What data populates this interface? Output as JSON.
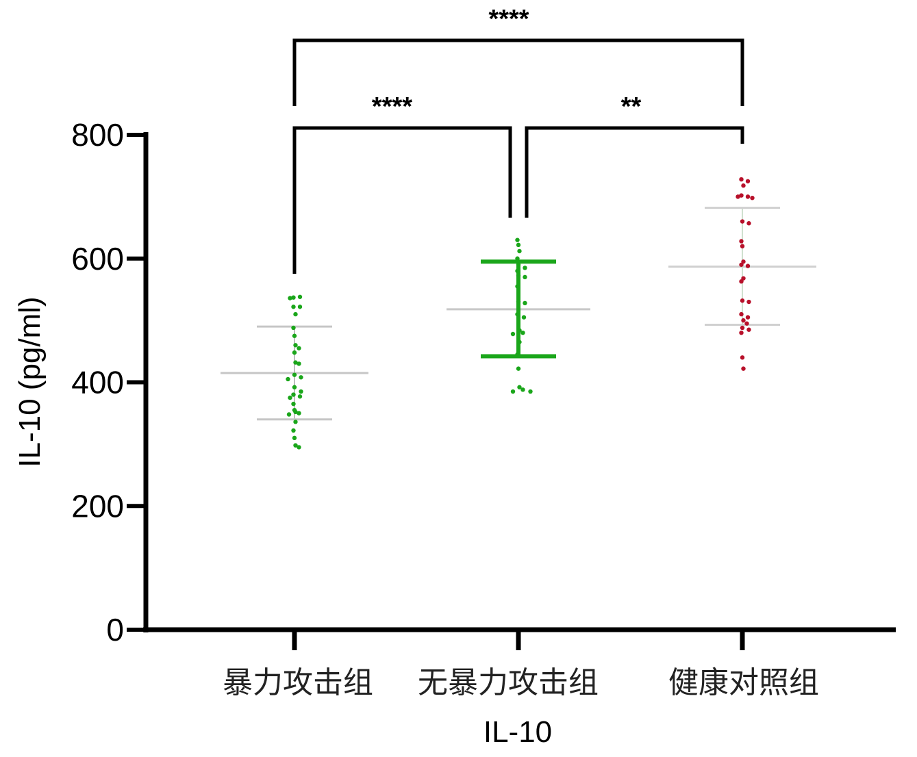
{
  "chart_data": {
    "type": "scatter",
    "ylabel": "IL-10 (pg/ml)",
    "xlabel": "IL-10",
    "ylim": [
      0,
      800
    ],
    "yticks": [
      0,
      200,
      400,
      600,
      800
    ],
    "categories": [
      "暴力攻击组",
      "无暴力攻击组",
      "健康对照组"
    ],
    "colors": [
      "#1aa61a",
      "#1aa61a",
      "#b8102a"
    ],
    "series": [
      {
        "mean": 415,
        "sd_low": 340,
        "sd_high": 490,
        "points": [
          537,
          538,
          536,
          522,
          522,
          510,
          488,
          475,
          460,
          455,
          448,
          432,
          430,
          412,
          408,
          405,
          392,
          385,
          380,
          377,
          375,
          365,
          355,
          352,
          350,
          348,
          336,
          322,
          310,
          298,
          295
        ]
      },
      {
        "mean": 518,
        "sd_low": 442,
        "sd_high": 595,
        "points": [
          630,
          622,
          612,
          600,
          590,
          585,
          580,
          572,
          570,
          555,
          530,
          528,
          510,
          505,
          484,
          480,
          478,
          465,
          445,
          422,
          392,
          388,
          385,
          385
        ]
      },
      {
        "mean": 587,
        "sd_low": 493,
        "sd_high": 682,
        "points": [
          728,
          725,
          718,
          702,
          700,
          700,
          698,
          660,
          657,
          628,
          620,
          595,
          590,
          588,
          568,
          563,
          532,
          530,
          510,
          505,
          500,
          495,
          488,
          485,
          480,
          440,
          422
        ]
      }
    ],
    "significance": [
      {
        "label": "****",
        "from": 0,
        "to": 2
      },
      {
        "label": "****",
        "from": 0,
        "to": 1
      },
      {
        "label": "**",
        "from": 1,
        "to": 2
      }
    ]
  }
}
